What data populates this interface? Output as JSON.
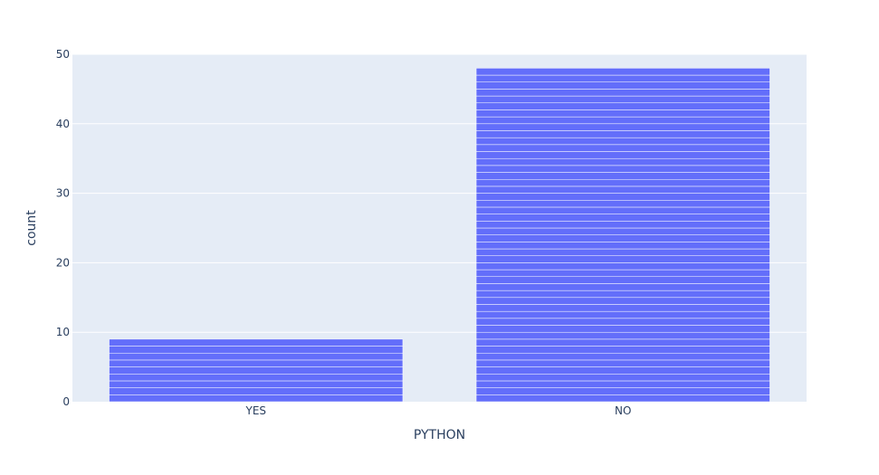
{
  "chart_data": {
    "type": "bar",
    "categories": [
      "YES",
      "NO"
    ],
    "values": [
      9,
      48
    ],
    "xlabel": "PYTHON",
    "ylabel": "count",
    "ylim": [
      0,
      50
    ],
    "yticks": [
      0,
      10,
      20,
      30,
      40,
      50
    ],
    "grid": true,
    "bar_style": "stacked unit segments (one segment per count)",
    "colors": {
      "bar": "#636efa",
      "plot_background": "#e5ecf6",
      "gridline": "#ffffff",
      "text": "#2a3f5f"
    }
  }
}
